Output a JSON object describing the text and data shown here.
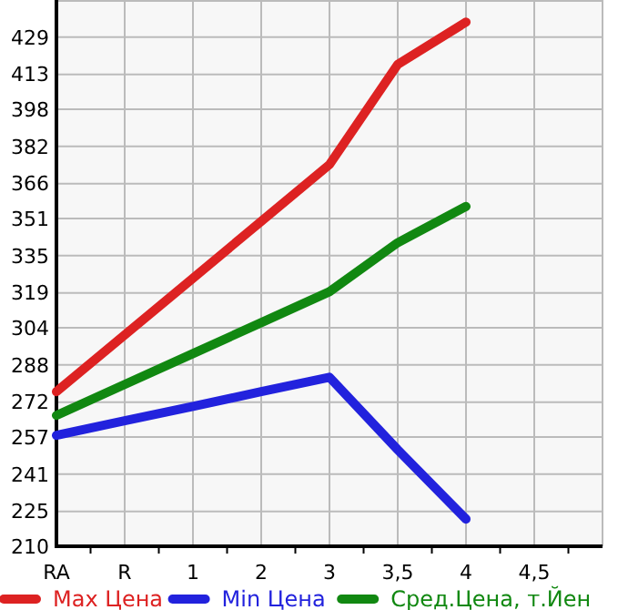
{
  "chart_data": {
    "type": "line",
    "categories": [
      "RA",
      "R",
      "1",
      "2",
      "3",
      "3,5",
      "4",
      "4,5"
    ],
    "series": [
      {
        "name": "Max Цена",
        "color": "#dd2222",
        "values": [
          276.5,
          300.9,
          325.3,
          349.8,
          374.2,
          417.3,
          435.5,
          null
        ]
      },
      {
        "name": "Min Цена",
        "color": "#2222dd",
        "values": [
          257.7,
          264,
          270.2,
          276.5,
          282.7,
          251.5,
          221.7,
          null
        ]
      },
      {
        "name": "Сред.Цена, т.Йен",
        "color": "#118811",
        "values": [
          266.3,
          279.6,
          292.9,
          306.2,
          319.5,
          340.6,
          356.2,
          null
        ]
      }
    ],
    "ylim": [
      210,
      445
    ],
    "yticks": [
      210,
      225,
      241,
      257,
      272,
      288,
      304,
      319,
      335,
      351,
      366,
      382,
      398,
      413,
      429
    ],
    "grid": true,
    "legend": "bottom",
    "marker": "none",
    "line_style": "solid"
  }
}
